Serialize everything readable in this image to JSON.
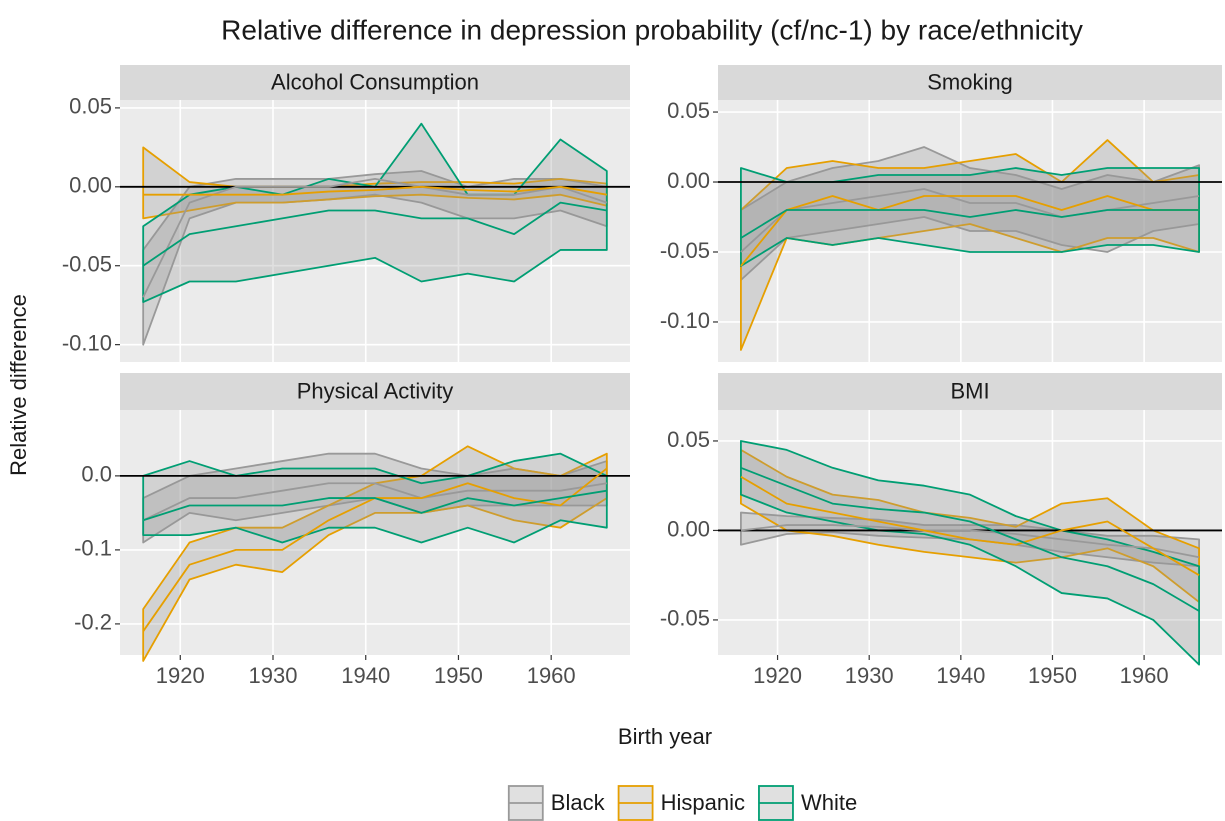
{
  "chart_data": {
    "type": "line",
    "title": "Relative difference in depression probability (cf/nc-1) by race/ethnicity",
    "xlabel": "Birth year",
    "ylabel": "Relative difference",
    "x": [
      1916,
      1921,
      1926,
      1931,
      1936,
      1941,
      1946,
      1951,
      1956,
      1961,
      1966
    ],
    "xlim": [
      1913.5,
      1968.5
    ],
    "xticks": [
      1920,
      1930,
      1940,
      1950,
      1960
    ],
    "grid": true,
    "legend_position": "bottom",
    "legend": [
      {
        "name": "Black",
        "color": "#999999"
      },
      {
        "name": "Hispanic",
        "color": "#E69F00"
      },
      {
        "name": "White",
        "color": "#009E73"
      }
    ],
    "panels": [
      {
        "title": "Alcohol Consumption",
        "ylim": [
          -0.111,
          0.055
        ],
        "hline": 0,
        "yticks": [
          0.05,
          {
            "value": 0,
            "label": "0.00"
          },
          -0.05,
          {
            "value": -0.1,
            "label": "-0.10"
          }
        ],
        "series": [
          {
            "values": [
              -0.07,
              -0.01,
              0.0,
              0.0,
              0.0,
              0.005,
              0.0,
              -0.005,
              -0.005,
              0.0,
              -0.01
            ],
            "lower": [
              -0.1,
              -0.02,
              -0.01,
              -0.01,
              -0.008,
              -0.005,
              -0.01,
              -0.02,
              -0.02,
              -0.015,
              -0.025
            ],
            "upper": [
              -0.04,
              0.0,
              0.005,
              0.005,
              0.005,
              0.008,
              0.01,
              0.0,
              0.005,
              0.005,
              0.0
            ]
          },
          {
            "values": [
              -0.005,
              -0.005,
              -0.005,
              -0.005,
              -0.003,
              -0.002,
              0.0,
              -0.002,
              -0.003,
              0.0,
              -0.005
            ],
            "lower": [
              -0.02,
              -0.015,
              -0.01,
              -0.01,
              -0.008,
              -0.006,
              -0.005,
              -0.007,
              -0.008,
              -0.005,
              -0.012
            ],
            "upper": [
              0.025,
              0.003,
              0.0,
              0.0,
              0.0,
              0.002,
              0.003,
              0.003,
              0.002,
              0.005,
              0.002
            ]
          },
          {
            "values": [
              -0.05,
              -0.03,
              -0.025,
              -0.02,
              -0.015,
              -0.015,
              -0.02,
              -0.02,
              -0.03,
              -0.01,
              -0.015
            ],
            "lower": [
              -0.073,
              -0.06,
              -0.06,
              -0.055,
              -0.05,
              -0.045,
              -0.06,
              -0.055,
              -0.06,
              -0.04,
              -0.04
            ],
            "upper": [
              -0.025,
              -0.005,
              0.0,
              -0.005,
              0.005,
              0.0,
              0.04,
              -0.005,
              -0.005,
              0.03,
              0.01
            ]
          }
        ]
      },
      {
        "title": "Smoking",
        "ylim": [
          -0.1286,
          0.0586
        ],
        "hline": 0,
        "yticks": [
          0.05,
          {
            "value": 0,
            "label": "0.00"
          },
          -0.05,
          {
            "value": -0.1,
            "label": "-0.10"
          }
        ],
        "series": [
          {
            "values": [
              -0.05,
              -0.02,
              -0.015,
              -0.01,
              -0.005,
              -0.015,
              -0.015,
              -0.025,
              -0.02,
              -0.015,
              -0.01
            ],
            "lower": [
              -0.07,
              -0.04,
              -0.035,
              -0.03,
              -0.025,
              -0.035,
              -0.035,
              -0.045,
              -0.05,
              -0.035,
              -0.03
            ],
            "upper": [
              -0.02,
              0.0,
              0.01,
              0.015,
              0.025,
              0.01,
              0.005,
              -0.005,
              0.005,
              0.0,
              0.012
            ]
          },
          {
            "values": [
              -0.06,
              -0.02,
              -0.01,
              -0.02,
              -0.01,
              -0.01,
              -0.01,
              -0.02,
              -0.01,
              -0.02,
              -0.02
            ],
            "lower": [
              -0.12,
              -0.04,
              -0.045,
              -0.04,
              -0.035,
              -0.03,
              -0.04,
              -0.05,
              -0.04,
              -0.04,
              -0.05
            ],
            "upper": [
              -0.02,
              0.01,
              0.015,
              0.01,
              0.01,
              0.015,
              0.02,
              0.0,
              0.03,
              0.0,
              0.005
            ]
          },
          {
            "values": [
              -0.04,
              -0.02,
              -0.02,
              -0.02,
              -0.02,
              -0.025,
              -0.02,
              -0.025,
              -0.02,
              -0.02,
              -0.02
            ],
            "lower": [
              -0.06,
              -0.04,
              -0.045,
              -0.04,
              -0.045,
              -0.05,
              -0.05,
              -0.05,
              -0.045,
              -0.045,
              -0.05
            ],
            "upper": [
              0.01,
              0.0,
              0.0,
              0.005,
              0.005,
              0.005,
              0.01,
              0.005,
              0.01,
              0.01,
              0.01
            ]
          }
        ]
      },
      {
        "title": "Physical Activity",
        "ylim": [
          -0.242,
          0.089
        ],
        "hline": 0,
        "yticks": [
          {
            "value": 0,
            "label": "0.0"
          },
          -0.1,
          -0.2
        ],
        "series": [
          {
            "values": [
              -0.06,
              -0.03,
              -0.03,
              -0.02,
              -0.01,
              -0.01,
              -0.03,
              -0.02,
              -0.02,
              -0.02,
              -0.01
            ],
            "lower": [
              -0.09,
              -0.05,
              -0.06,
              -0.05,
              -0.04,
              -0.03,
              -0.05,
              -0.04,
              -0.04,
              -0.04,
              -0.04
            ],
            "upper": [
              -0.03,
              0.0,
              0.01,
              0.02,
              0.03,
              0.03,
              0.01,
              0.0,
              0.01,
              0.0,
              0.02
            ]
          },
          {
            "values": [
              -0.21,
              -0.12,
              -0.1,
              -0.1,
              -0.06,
              -0.03,
              -0.03,
              -0.01,
              -0.03,
              -0.04,
              0.01
            ],
            "lower": [
              -0.25,
              -0.14,
              -0.12,
              -0.13,
              -0.08,
              -0.05,
              -0.05,
              -0.04,
              -0.06,
              -0.07,
              -0.03
            ],
            "upper": [
              -0.18,
              -0.09,
              -0.07,
              -0.07,
              -0.04,
              -0.01,
              0.0,
              0.04,
              0.01,
              0.0,
              0.03
            ]
          },
          {
            "values": [
              -0.06,
              -0.04,
              -0.04,
              -0.04,
              -0.03,
              -0.03,
              -0.05,
              -0.03,
              -0.04,
              -0.03,
              -0.02
            ],
            "lower": [
              -0.08,
              -0.08,
              -0.07,
              -0.09,
              -0.07,
              -0.07,
              -0.09,
              -0.07,
              -0.09,
              -0.06,
              -0.07
            ],
            "upper": [
              0.0,
              0.02,
              0.0,
              0.01,
              0.01,
              0.01,
              -0.01,
              0.0,
              0.02,
              0.03,
              0.0
            ]
          }
        ]
      },
      {
        "title": "BMI",
        "ylim": [
          -0.0696,
          0.0673
        ],
        "hline": 0,
        "yticks": [
          0.05,
          {
            "value": 0,
            "label": "0.00"
          },
          -0.05
        ],
        "series": [
          {
            "values": [
              0.0,
              0.003,
              0.003,
              0.002,
              0.0,
              0.0,
              -0.002,
              -0.005,
              -0.008,
              -0.01,
              -0.015
            ],
            "lower": [
              -0.008,
              -0.002,
              -0.001,
              -0.003,
              -0.004,
              -0.005,
              -0.008,
              -0.012,
              -0.015,
              -0.018,
              -0.02
            ],
            "upper": [
              0.01,
              0.008,
              0.007,
              0.006,
              0.003,
              0.003,
              0.003,
              0.0,
              -0.003,
              -0.003,
              -0.005
            ]
          },
          {
            "values": [
              0.03,
              0.015,
              0.01,
              0.005,
              0.0,
              -0.005,
              -0.008,
              0.0,
              0.005,
              -0.01,
              -0.025
            ],
            "lower": [
              0.015,
              0.0,
              -0.003,
              -0.008,
              -0.012,
              -0.015,
              -0.018,
              -0.015,
              -0.01,
              -0.02,
              -0.04
            ],
            "upper": [
              0.045,
              0.03,
              0.02,
              0.017,
              0.01,
              0.007,
              0.002,
              0.015,
              0.018,
              0.0,
              -0.01
            ]
          },
          {
            "values": [
              0.035,
              0.025,
              0.015,
              0.012,
              0.01,
              0.005,
              -0.005,
              -0.015,
              -0.02,
              -0.03,
              -0.045
            ],
            "lower": [
              0.02,
              0.01,
              0.005,
              0.0,
              -0.002,
              -0.008,
              -0.02,
              -0.035,
              -0.038,
              -0.05,
              -0.075
            ],
            "upper": [
              0.05,
              0.045,
              0.035,
              0.028,
              0.025,
              0.02,
              0.008,
              0.0,
              -0.005,
              -0.012,
              -0.02
            ]
          }
        ]
      }
    ]
  }
}
